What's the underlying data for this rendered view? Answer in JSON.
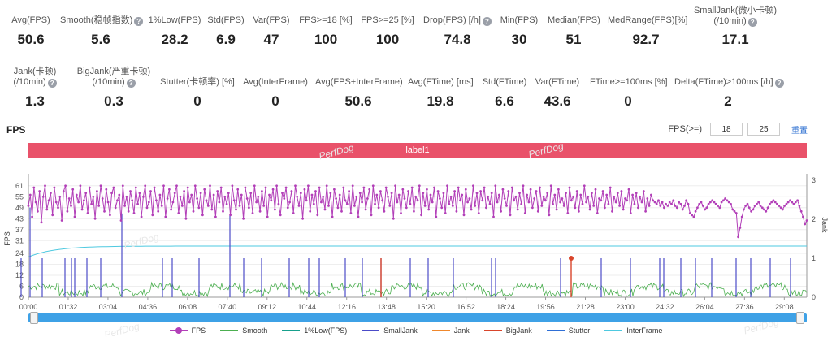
{
  "metrics_row1": [
    {
      "label": "Avg(FPS)",
      "value": "50.6",
      "help": false
    },
    {
      "label": "Smooth(稳帧指数)",
      "value": "5.6",
      "help": true
    },
    {
      "label": "1%Low(FPS)",
      "value": "28.2",
      "help": false
    },
    {
      "label": "Std(FPS)",
      "value": "6.9",
      "help": false
    },
    {
      "label": "Var(FPS)",
      "value": "47",
      "help": false
    },
    {
      "label": "FPS>=18 [%]",
      "value": "100",
      "help": false
    },
    {
      "label": "FPS>=25 [%]",
      "value": "100",
      "help": false
    },
    {
      "label": "Drop(FPS) [/h]",
      "value": "74.8",
      "help": true
    },
    {
      "label": "Min(FPS)",
      "value": "30",
      "help": false
    },
    {
      "label": "Median(FPS)",
      "value": "51",
      "help": false
    },
    {
      "label": "MedRange(FPS)[%]",
      "value": "92.7",
      "help": false
    },
    {
      "label": "SmallJank(微小卡顿)",
      "label2": "(/10min)",
      "value": "17.1",
      "help": true
    }
  ],
  "metrics_row2": [
    {
      "label": "Jank(卡顿)",
      "label2": "(/10min)",
      "value": "1.3",
      "help": true
    },
    {
      "label": "BigJank(严重卡顿)",
      "label2": "(/10min)",
      "value": "0.3",
      "help": true
    },
    {
      "label": "Stutter(卡顿率) [%]",
      "value": "0",
      "help": false
    },
    {
      "label": "Avg(InterFrame)",
      "value": "0",
      "help": false
    },
    {
      "label": "Avg(FPS+InterFrame)",
      "value": "50.6",
      "help": false
    },
    {
      "label": "Avg(FTime) [ms]",
      "value": "19.8",
      "help": false
    },
    {
      "label": "Std(FTime)",
      "value": "6.6",
      "help": false
    },
    {
      "label": "Var(FTime)",
      "value": "43.6",
      "help": false
    },
    {
      "label": "FTime>=100ms [%]",
      "value": "0",
      "help": false
    },
    {
      "label": "Delta(FTime)>100ms [/h]",
      "value": "2",
      "help": true
    }
  ],
  "section_title": "FPS",
  "fps_threshold": {
    "label": "FPS(>=)",
    "value1": "18",
    "value2": "25",
    "reset": "重置"
  },
  "label_bar": "label1",
  "watermark": "PerfDog",
  "legend": [
    {
      "name": "FPS",
      "color": "#b23fb8",
      "dot": true
    },
    {
      "name": "Smooth",
      "color": "#4caf50",
      "dot": false
    },
    {
      "name": "1%Low(FPS)",
      "color": "#17a08c",
      "dot": false
    },
    {
      "name": "SmallJank",
      "color": "#4b4bc8",
      "dot": false
    },
    {
      "name": "Jank",
      "color": "#f0882c",
      "dot": false
    },
    {
      "name": "BigJank",
      "color": "#d9452b",
      "dot": false
    },
    {
      "name": "Stutter",
      "color": "#2f6fd6",
      "dot": false
    },
    {
      "name": "InterFrame",
      "color": "#4ec9e0",
      "dot": false
    }
  ],
  "chart_data": {
    "type": "line",
    "ylabel": "FPS",
    "y2label": "Jank",
    "y_ticks": [
      0,
      6,
      12,
      18,
      24,
      31,
      37,
      43,
      49,
      55,
      61
    ],
    "y2_ticks": [
      0,
      1,
      2,
      3
    ],
    "ylim": [
      0,
      64
    ],
    "y2lim": [
      0,
      3
    ],
    "x_ticks": [
      "00:00",
      "01:32",
      "03:04",
      "04:36",
      "06:08",
      "07:40",
      "09:12",
      "10:44",
      "12:16",
      "13:48",
      "15:20",
      "16:52",
      "18:24",
      "19:56",
      "21:28",
      "23:00",
      "24:32",
      "26:04",
      "27:36",
      "29:08"
    ],
    "duration_sec": 1800,
    "fps_series": [
      50,
      56,
      44,
      60,
      52,
      47,
      58,
      41,
      55,
      61,
      48,
      53,
      57,
      45,
      60,
      52,
      49,
      55,
      42,
      58,
      61,
      47,
      54,
      50,
      59,
      44,
      56,
      52,
      61,
      48,
      53,
      57,
      46,
      60,
      51,
      55,
      43,
      58,
      50,
      61,
      54,
      47,
      59,
      52,
      45,
      57,
      60,
      49,
      53,
      56,
      42,
      61,
      50,
      55,
      47,
      58,
      53,
      46,
      60,
      51,
      57,
      44,
      55,
      61,
      49,
      52,
      58,
      45,
      60,
      53,
      47,
      56,
      50,
      61,
      44,
      54,
      59,
      48,
      52,
      57,
      61,
      46,
      55,
      50,
      58,
      43,
      60,
      52,
      56,
      47,
      61,
      54,
      49,
      57,
      45,
      59,
      53,
      50,
      61,
      48,
      56,
      44,
      58,
      52,
      60,
      47,
      55,
      51,
      57,
      45,
      61,
      53,
      48,
      59,
      50,
      56,
      43,
      60,
      54,
      49,
      57,
      46,
      61,
      52,
      55,
      47,
      58,
      50,
      60,
      44,
      56,
      53,
      59,
      48,
      61,
      51,
      45,
      57,
      54,
      60,
      49,
      52,
      58,
      46,
      61,
      55,
      50,
      57,
      43,
      59,
      53,
      61,
      47,
      56,
      51,
      58,
      45,
      60,
      52,
      55,
      48,
      61,
      50,
      57,
      44,
      59,
      54,
      49,
      56,
      47,
      60,
      53,
      51,
      58,
      46,
      61,
      50,
      55,
      44,
      57,
      52,
      60,
      48,
      54,
      59,
      45,
      61,
      51,
      56,
      49,
      58,
      53,
      47,
      60,
      55,
      50,
      57,
      43,
      61,
      52,
      56,
      46,
      59,
      54,
      49,
      58,
      51,
      60,
      47,
      55,
      53,
      61,
      45,
      57,
      50,
      59,
      48,
      56,
      52,
      60,
      44,
      58,
      54,
      49,
      57,
      46,
      61,
      51,
      55,
      50,
      58,
      47,
      60,
      53,
      56,
      45,
      59,
      52,
      54,
      48,
      61,
      50,
      57,
      46,
      58,
      53,
      60,
      49,
      55,
      51,
      57,
      44,
      61,
      52,
      56,
      47,
      59,
      54,
      50,
      58,
      45,
      60,
      53,
      55,
      48,
      57,
      51,
      61,
      46,
      56,
      52,
      59,
      49,
      54,
      58,
      47,
      60,
      50,
      55,
      53,
      57,
      45,
      61,
      51,
      56,
      48,
      59,
      52,
      54,
      50,
      57,
      46,
      60,
      53,
      55,
      49,
      58,
      47,
      56,
      51,
      61,
      52,
      55,
      48,
      57,
      50,
      59,
      46,
      54,
      53,
      58,
      49,
      56,
      51,
      60,
      47,
      55,
      52,
      57,
      50,
      58,
      48,
      54,
      53,
      59,
      46,
      56,
      51,
      57,
      49,
      55,
      52,
      58,
      47,
      54,
      50,
      56,
      53,
      52,
      51,
      53,
      50,
      52,
      49,
      51,
      50,
      52,
      51,
      53,
      50,
      49,
      52,
      51,
      48,
      50,
      53,
      51,
      46,
      45,
      44,
      47,
      49,
      51,
      52,
      50,
      48,
      49,
      51,
      52,
      53,
      52,
      51,
      50,
      49,
      52,
      53,
      54,
      53,
      52,
      51,
      48,
      47,
      46,
      33,
      38,
      44,
      48,
      50,
      51,
      49,
      47,
      48,
      50,
      51,
      52,
      50,
      49,
      48,
      47,
      49,
      51,
      52,
      53,
      52,
      51,
      50,
      49,
      48,
      50,
      51,
      52,
      53,
      52,
      51,
      52,
      53,
      50,
      47,
      44,
      40,
      42
    ]
  }
}
